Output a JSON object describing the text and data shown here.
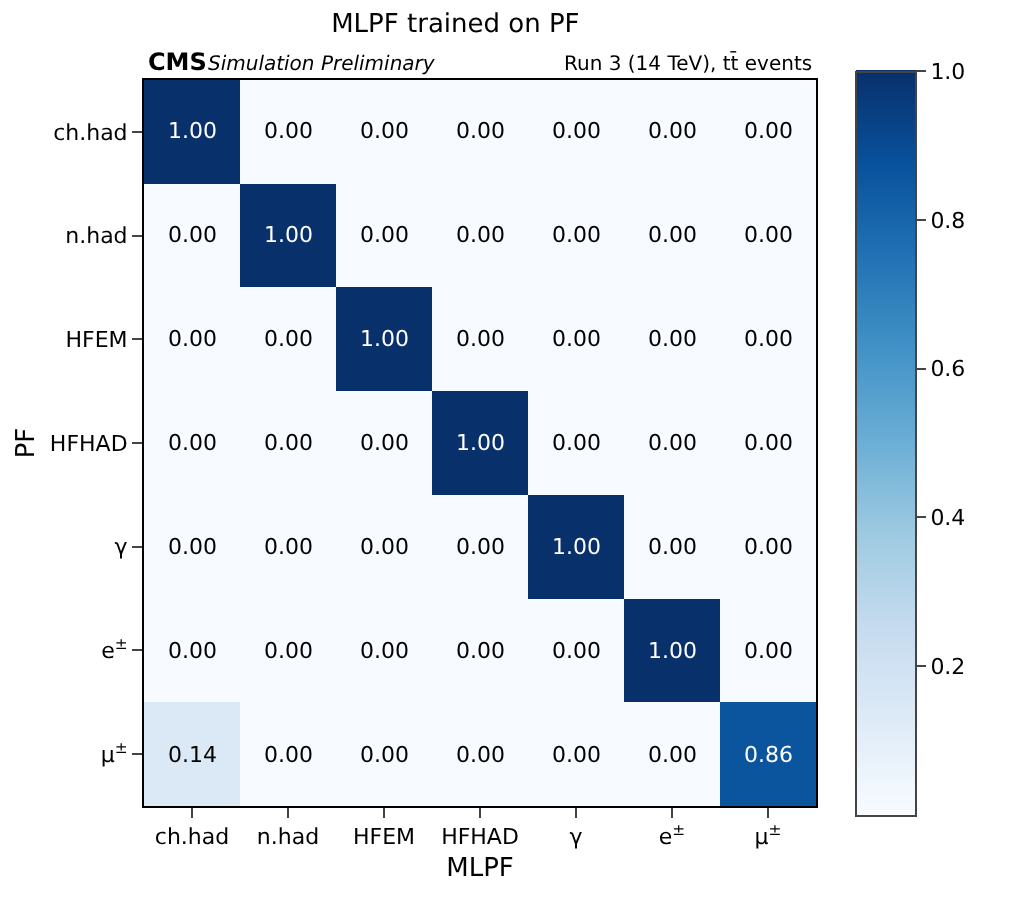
{
  "chart_data": {
    "type": "heatmap",
    "title": "MLPF trained on PF",
    "xlabel": "MLPF",
    "ylabel": "PF",
    "annotations": [
      "CMS",
      "Simulation Preliminary",
      "Run 3 (14 TeV), tt̄ events"
    ],
    "categories": [
      "ch.had",
      "n.had",
      "HFEM",
      "HFHAD",
      "γ",
      "e$^{±}$",
      "μ$^{±}$"
    ],
    "y_categories": [
      "ch.had",
      "n.had",
      "HFEM",
      "HFHAD",
      "γ",
      "e$^{±}$",
      "μ$^{±}$"
    ],
    "cells": [
      [
        1.0,
        0.0,
        0.0,
        0.0,
        0.0,
        0.0,
        0.0
      ],
      [
        0.0,
        1.0,
        0.0,
        0.0,
        0.0,
        0.0,
        0.0
      ],
      [
        0.0,
        0.0,
        1.0,
        0.0,
        0.0,
        0.0,
        0.0
      ],
      [
        0.0,
        0.0,
        0.0,
        1.0,
        0.0,
        0.0,
        0.0
      ],
      [
        0.0,
        0.0,
        0.0,
        0.0,
        1.0,
        0.0,
        0.0
      ],
      [
        0.0,
        0.0,
        0.0,
        0.0,
        0.0,
        1.0,
        0.0
      ],
      [
        0.14,
        0.0,
        0.0,
        0.0,
        0.0,
        0.0,
        0.86
      ]
    ],
    "cell_labels": [
      [
        "1.00",
        "0.00",
        "0.00",
        "0.00",
        "0.00",
        "0.00",
        "0.00"
      ],
      [
        "0.00",
        "1.00",
        "0.00",
        "0.00",
        "0.00",
        "0.00",
        "0.00"
      ],
      [
        "0.00",
        "0.00",
        "1.00",
        "0.00",
        "0.00",
        "0.00",
        "0.00"
      ],
      [
        "0.00",
        "0.00",
        "0.00",
        "1.00",
        "0.00",
        "0.00",
        "0.00"
      ],
      [
        "0.00",
        "0.00",
        "0.00",
        "0.00",
        "1.00",
        "0.00",
        "0.00"
      ],
      [
        "0.00",
        "0.00",
        "0.00",
        "0.00",
        "0.00",
        "1.00",
        "0.00"
      ],
      [
        "0.14",
        "0.00",
        "0.00",
        "0.00",
        "0.00",
        "0.00",
        "0.86"
      ]
    ],
    "clim": [
      0,
      1
    ],
    "cticks": [
      0.2,
      0.4,
      0.6,
      0.8,
      {
        "value": 1,
        "label": "1.0"
      }
    ]
  }
}
